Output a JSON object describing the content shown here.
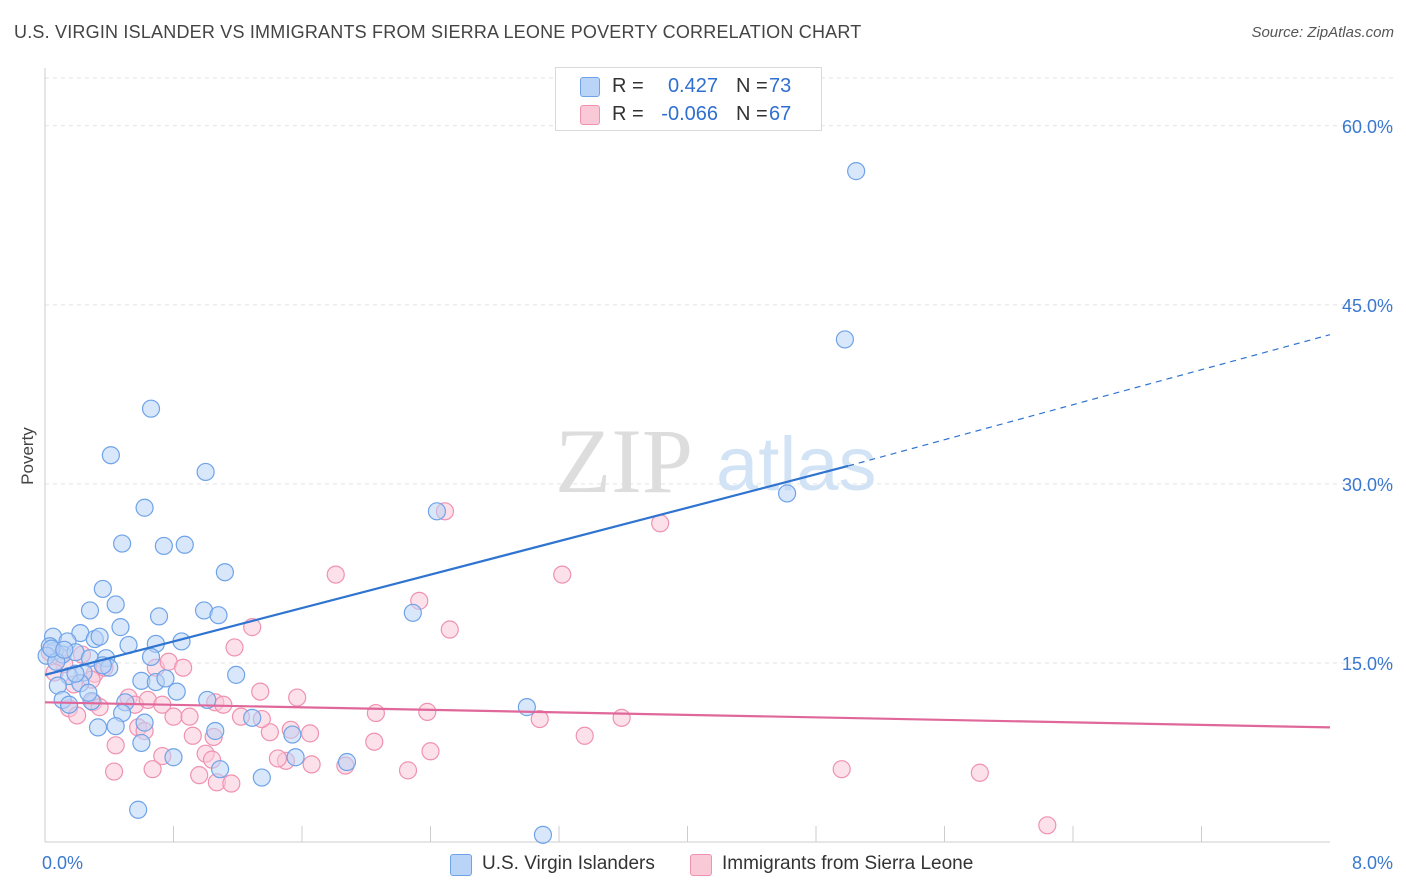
{
  "header": {
    "title": "U.S. VIRGIN ISLANDER VS IMMIGRANTS FROM SIERRA LEONE POVERTY CORRELATION CHART",
    "source": "Source: ZipAtlas.com"
  },
  "watermark": {
    "zip": "ZIP",
    "atlas": "atlas"
  },
  "legend_stats": [
    {
      "r_label": "R =",
      "r_value": "0.427",
      "n_label": "N =",
      "n_value": "73"
    },
    {
      "r_label": "R =",
      "r_value": "-0.066",
      "n_label": "N =",
      "n_value": "67"
    }
  ],
  "legend_series": [
    "U.S. Virgin Islanders",
    "Immigrants from Sierra Leone"
  ],
  "colors": {
    "blue_fill": "#b9d4f6",
    "blue_stroke": "#6fa3e8",
    "blue_line": "#2f74d0",
    "pink_fill": "#f9c9d8",
    "pink_stroke": "#ef92b0",
    "pink_line": "#e0679a",
    "axis_label": "#3a78cf",
    "grid": "#e3e3e3"
  },
  "chart_data": {
    "type": "scatter",
    "title": "U.S. VIRGIN ISLANDER VS IMMIGRANTS FROM SIERRA LEONE POVERTY CORRELATION CHART",
    "xlabel": "",
    "ylabel": "Poverty",
    "xlim": [
      0,
      8
    ],
    "ylim": [
      0,
      64
    ],
    "x_tick_labels": [
      "0.0%",
      "8.0%"
    ],
    "y_ticks": [
      15,
      30,
      45,
      60
    ],
    "y_tick_labels": [
      "15.0%",
      "30.0%",
      "45.0%",
      "60.0%"
    ],
    "x_minor_ticks": [
      0.8,
      1.6,
      2.4,
      3.2,
      4.0,
      4.8,
      5.6,
      6.4,
      7.2
    ],
    "series": [
      {
        "name": "U.S. Virgin Islanders",
        "r": 0.427,
        "n": 73,
        "trend": {
          "x0": 0.0,
          "y0": 14.0,
          "x1": 5.0,
          "y1": 31.5,
          "dash_x1": 8.0,
          "dash_y1": 42.5
        },
        "points": [
          [
            5.05,
            56.2
          ],
          [
            4.98,
            42.1
          ],
          [
            0.66,
            36.3
          ],
          [
            0.41,
            32.4
          ],
          [
            1.0,
            31.0
          ],
          [
            4.62,
            29.2
          ],
          [
            0.62,
            28.0
          ],
          [
            2.44,
            27.7
          ],
          [
            0.48,
            25.0
          ],
          [
            0.74,
            24.8
          ],
          [
            0.87,
            24.9
          ],
          [
            1.12,
            22.6
          ],
          [
            0.36,
            21.2
          ],
          [
            0.44,
            19.9
          ],
          [
            0.47,
            18.0
          ],
          [
            0.71,
            18.9
          ],
          [
            0.99,
            19.4
          ],
          [
            1.08,
            19.0
          ],
          [
            0.28,
            19.4
          ],
          [
            2.29,
            19.2
          ],
          [
            0.22,
            17.5
          ],
          [
            0.31,
            17.0
          ],
          [
            0.34,
            17.2
          ],
          [
            0.05,
            17.2
          ],
          [
            0.14,
            16.8
          ],
          [
            0.06,
            16.0
          ],
          [
            0.11,
            15.7
          ],
          [
            0.19,
            15.9
          ],
          [
            0.28,
            15.4
          ],
          [
            0.38,
            15.4
          ],
          [
            0.52,
            16.5
          ],
          [
            0.69,
            16.6
          ],
          [
            0.85,
            16.8
          ],
          [
            0.03,
            16.4
          ],
          [
            0.01,
            15.6
          ],
          [
            0.07,
            15.1
          ],
          [
            0.24,
            14.2
          ],
          [
            0.4,
            14.6
          ],
          [
            0.15,
            13.9
          ],
          [
            0.08,
            13.1
          ],
          [
            0.22,
            13.3
          ],
          [
            0.6,
            13.5
          ],
          [
            0.69,
            13.4
          ],
          [
            0.75,
            13.7
          ],
          [
            0.82,
            12.6
          ],
          [
            0.11,
            11.9
          ],
          [
            0.29,
            11.8
          ],
          [
            0.5,
            11.7
          ],
          [
            1.01,
            11.9
          ],
          [
            0.15,
            11.5
          ],
          [
            0.48,
            10.8
          ],
          [
            0.62,
            10.0
          ],
          [
            3.0,
            11.3
          ],
          [
            0.33,
            9.6
          ],
          [
            0.44,
            9.7
          ],
          [
            1.06,
            9.3
          ],
          [
            1.29,
            10.4
          ],
          [
            1.54,
            9.0
          ],
          [
            0.6,
            8.3
          ],
          [
            0.8,
            7.1
          ],
          [
            1.09,
            6.1
          ],
          [
            1.35,
            5.4
          ],
          [
            1.56,
            7.1
          ],
          [
            1.88,
            6.7
          ],
          [
            0.58,
            2.7
          ],
          [
            3.1,
            0.6
          ],
          [
            0.04,
            16.2
          ],
          [
            0.12,
            16.1
          ],
          [
            0.36,
            14.8
          ],
          [
            0.66,
            15.5
          ],
          [
            0.19,
            14.1
          ],
          [
            0.27,
            12.5
          ],
          [
            1.19,
            14.0
          ]
        ]
      },
      {
        "name": "Immigrants from Sierra Leone",
        "r": -0.066,
        "n": 67,
        "trend": {
          "x0": 0.0,
          "y0": 11.7,
          "x1": 8.0,
          "y1": 9.6
        },
        "points": [
          [
            2.49,
            27.7
          ],
          [
            3.83,
            26.7
          ],
          [
            1.81,
            22.4
          ],
          [
            3.22,
            22.4
          ],
          [
            2.33,
            20.2
          ],
          [
            1.29,
            18.0
          ],
          [
            2.52,
            17.8
          ],
          [
            1.18,
            16.3
          ],
          [
            0.03,
            15.9
          ],
          [
            0.09,
            15.5
          ],
          [
            0.23,
            15.7
          ],
          [
            0.12,
            14.9
          ],
          [
            0.31,
            14.1
          ],
          [
            0.37,
            14.6
          ],
          [
            0.69,
            14.6
          ],
          [
            0.77,
            15.1
          ],
          [
            0.86,
            14.6
          ],
          [
            0.06,
            14.2
          ],
          [
            0.18,
            13.2
          ],
          [
            0.29,
            13.6
          ],
          [
            0.15,
            11.2
          ],
          [
            0.3,
            11.7
          ],
          [
            0.52,
            12.1
          ],
          [
            0.56,
            11.5
          ],
          [
            0.64,
            11.9
          ],
          [
            0.73,
            11.5
          ],
          [
            1.06,
            11.7
          ],
          [
            1.11,
            11.5
          ],
          [
            1.34,
            12.6
          ],
          [
            1.57,
            12.1
          ],
          [
            0.8,
            10.5
          ],
          [
            0.58,
            9.6
          ],
          [
            0.92,
            8.9
          ],
          [
            1.05,
            8.8
          ],
          [
            1.22,
            10.5
          ],
          [
            1.4,
            9.2
          ],
          [
            1.53,
            9.4
          ],
          [
            1.65,
            9.1
          ],
          [
            2.06,
            10.8
          ],
          [
            2.38,
            10.9
          ],
          [
            3.08,
            10.3
          ],
          [
            3.59,
            10.4
          ],
          [
            0.44,
            8.1
          ],
          [
            0.73,
            7.2
          ],
          [
            1.0,
            7.4
          ],
          [
            1.04,
            6.9
          ],
          [
            1.5,
            6.8
          ],
          [
            1.66,
            6.5
          ],
          [
            1.87,
            6.4
          ],
          [
            2.05,
            8.4
          ],
          [
            2.4,
            7.6
          ],
          [
            3.36,
            8.9
          ],
          [
            0.43,
            5.9
          ],
          [
            0.67,
            6.1
          ],
          [
            0.96,
            5.6
          ],
          [
            1.07,
            5.0
          ],
          [
            1.16,
            4.9
          ],
          [
            2.26,
            6.0
          ],
          [
            4.96,
            6.1
          ],
          [
            5.82,
            5.8
          ],
          [
            6.24,
            1.4
          ],
          [
            0.2,
            10.6
          ],
          [
            0.34,
            11.3
          ],
          [
            1.45,
            7.0
          ],
          [
            0.62,
            9.3
          ],
          [
            0.9,
            10.5
          ],
          [
            1.35,
            10.3
          ]
        ]
      }
    ]
  }
}
